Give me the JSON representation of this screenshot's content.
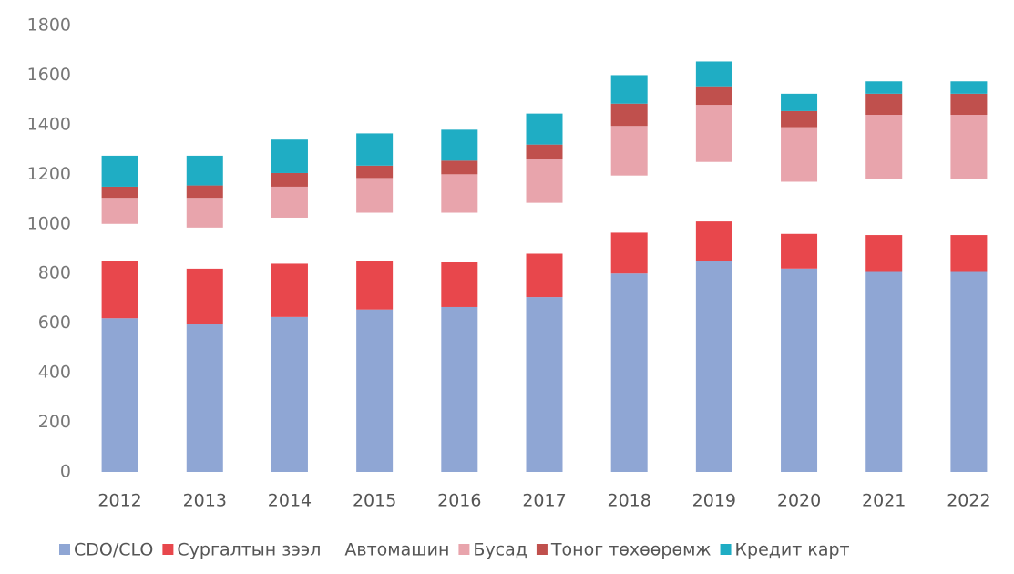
{
  "chart_data": {
    "type": "stacked_bar",
    "categories": [
      "2012",
      "2013",
      "2014",
      "2015",
      "2016",
      "2017",
      "2018",
      "2019",
      "2020",
      "2021",
      "2022"
    ],
    "series": [
      {
        "name": "CDO/CLO",
        "color": "#8fa6d4",
        "values": [
          620,
          595,
          625,
          655,
          665,
          705,
          800,
          850,
          820,
          810,
          810
        ]
      },
      {
        "name": "Сургалтын зээл",
        "color": "#e8474c",
        "values": [
          230,
          225,
          215,
          195,
          180,
          175,
          165,
          160,
          140,
          145,
          145
        ]
      },
      {
        "name": "Автомашин",
        "color": "#ffffff",
        "values": [
          150,
          165,
          185,
          195,
          200,
          205,
          230,
          240,
          210,
          225,
          225
        ]
      },
      {
        "name": "Бусад",
        "color": "#e8a4ac",
        "values": [
          105,
          120,
          125,
          140,
          155,
          175,
          200,
          230,
          220,
          260,
          260
        ]
      },
      {
        "name": "Тоног төхөөрөмж",
        "color": "#c0504d",
        "values": [
          45,
          50,
          55,
          50,
          55,
          60,
          90,
          75,
          65,
          85,
          85
        ]
      },
      {
        "name": "Кредит карт",
        "color": "#1fadc4",
        "values": [
          125,
          120,
          135,
          130,
          125,
          125,
          115,
          100,
          70,
          50,
          50
        ]
      }
    ],
    "ylim": [
      0,
      1800
    ],
    "yticks": [
      0,
      200,
      400,
      600,
      800,
      1000,
      1200,
      1400,
      1600,
      1800
    ],
    "grid": false,
    "legend": "bottom"
  }
}
